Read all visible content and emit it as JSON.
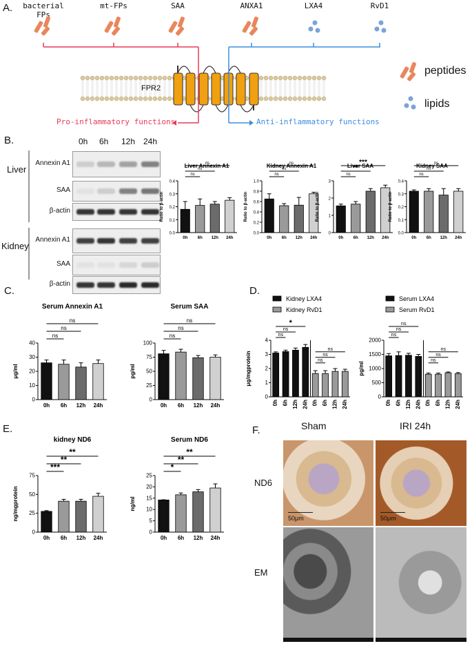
{
  "panel_labels": {
    "a": "A.",
    "b": "B.",
    "c": "C.",
    "d": "D.",
    "e": "E.",
    "f": "F."
  },
  "panel_a": {
    "ligands": [
      "bacterial FPs",
      "mt-FPs",
      "SAA",
      "ANXA1",
      "LXA4",
      "RvD1"
    ],
    "receptor": "FPR2",
    "pro": "Pro-inflammatory functions",
    "anti": "Anti-inflammatory functions",
    "legend": {
      "peptides": "peptides",
      "lipids": "lipids"
    },
    "colors": {
      "pro": "#e8395a",
      "anti": "#3b8de0",
      "peptide": "#e8875c",
      "lipid": "#7aa3d8",
      "helix": "#f0a010"
    }
  },
  "panel_b": {
    "lanes": [
      "0h",
      "6h",
      "12h",
      "24h"
    ],
    "groups": [
      {
        "name": "Liver",
        "rows": [
          "Annexin A1",
          "SAA",
          "β-actin"
        ]
      },
      {
        "name": "Kidney",
        "rows": [
          "Annexin A1",
          "SAA",
          "β-actin"
        ]
      }
    ]
  },
  "chart_data": [
    {
      "type": "bar",
      "title": "Liver Annexin A1",
      "ylabel": "Ratio to β-actin",
      "categories": [
        "0h",
        "6h",
        "12h",
        "24h"
      ],
      "values": [
        0.18,
        0.21,
        0.22,
        0.25
      ],
      "errors": [
        0.06,
        0.05,
        0.02,
        0.02
      ],
      "ylim": [
        0,
        0.4
      ],
      "yticks": [
        "0.0",
        "0.1",
        "0.2",
        "0.3",
        "0.4"
      ],
      "sig": [
        "ns",
        "ns",
        "ns"
      ],
      "colors": [
        "#111111",
        "#9a9a9a",
        "#6b6b6b",
        "#d0d0d0"
      ]
    },
    {
      "type": "bar",
      "title": "Kidney Annexin A1",
      "ylabel": "Ratio to β-actin",
      "categories": [
        "0h",
        "6h",
        "12h",
        "24h"
      ],
      "values": [
        0.65,
        0.52,
        0.53,
        0.75
      ],
      "errors": [
        0.1,
        0.04,
        0.15,
        0.03
      ],
      "ylim": [
        0,
        1.0
      ],
      "yticks": [
        "0.0",
        "0.2",
        "0.4",
        "0.6",
        "0.8",
        "1.0"
      ],
      "sig": [
        "ns",
        "ns",
        "ns"
      ],
      "colors": [
        "#111111",
        "#9a9a9a",
        "#6b6b6b",
        "#d0d0d0"
      ]
    },
    {
      "type": "bar",
      "title": "Liver SAA",
      "ylabel": "Ratio to β-actin",
      "categories": [
        "0h",
        "6h",
        "12h",
        "24h"
      ],
      "values": [
        1.55,
        1.65,
        2.4,
        2.6
      ],
      "errors": [
        0.1,
        0.15,
        0.15,
        0.15
      ],
      "ylim": [
        0,
        3
      ],
      "yticks": [
        "0",
        "1",
        "2",
        "3"
      ],
      "sig": [
        "ns",
        "**",
        "***"
      ],
      "colors": [
        "#111111",
        "#9a9a9a",
        "#6b6b6b",
        "#d0d0d0"
      ]
    },
    {
      "type": "bar",
      "title": "Kidney SAA",
      "ylabel": "Ratio to β-actin",
      "categories": [
        "0h",
        "6h",
        "12h",
        "24h"
      ],
      "values": [
        0.32,
        0.32,
        0.29,
        0.32
      ],
      "errors": [
        0.01,
        0.02,
        0.05,
        0.02
      ],
      "ylim": [
        0,
        0.4
      ],
      "yticks": [
        "0.0",
        "0.1",
        "0.2",
        "0.3",
        "0.4"
      ],
      "sig": [
        "ns",
        "ns",
        "ns"
      ],
      "colors": [
        "#111111",
        "#9a9a9a",
        "#6b6b6b",
        "#d0d0d0"
      ]
    },
    {
      "type": "bar",
      "title": "Serum Annexin A1",
      "ylabel": "μg/ml",
      "categories": [
        "0h",
        "6h",
        "12h",
        "24h"
      ],
      "values": [
        26,
        25,
        23,
        25.5
      ],
      "errors": [
        2,
        3,
        3,
        2.5
      ],
      "ylim": [
        0,
        40
      ],
      "yticks": [
        "0",
        "10",
        "20",
        "30",
        "40"
      ],
      "sig": [
        "ns",
        "ns",
        "ns"
      ],
      "colors": [
        "#111111",
        "#9a9a9a",
        "#6b6b6b",
        "#d0d0d0"
      ]
    },
    {
      "type": "bar",
      "title": "Serum SAA",
      "ylabel": "pg/ml",
      "categories": [
        "0h",
        "6h",
        "12h",
        "24h"
      ],
      "values": [
        81,
        84,
        74,
        75
      ],
      "errors": [
        6,
        5,
        4,
        4
      ],
      "ylim": [
        0,
        100
      ],
      "yticks": [
        "0",
        "25",
        "50",
        "75",
        "100"
      ],
      "sig": [
        "ns",
        "ns",
        "ns"
      ],
      "colors": [
        "#111111",
        "#9a9a9a",
        "#6b6b6b",
        "#d0d0d0"
      ]
    },
    {
      "type": "bar",
      "title": "",
      "ylabel": "μg/mgprotein",
      "categories": [
        "0h",
        "6h",
        "12h",
        "24h"
      ],
      "series": [
        {
          "name": "Kidney LXA4",
          "values": [
            3.1,
            3.2,
            3.3,
            3.5
          ],
          "errors": [
            0.08,
            0.1,
            0.15,
            0.2
          ]
        },
        {
          "name": "Kidney RvD1",
          "values": [
            1.65,
            1.65,
            1.8,
            1.8
          ],
          "errors": [
            0.2,
            0.2,
            0.2,
            0.15
          ]
        }
      ],
      "ylim": [
        0,
        4
      ],
      "yticks": [
        "0",
        "1",
        "2",
        "3",
        "4"
      ],
      "sig": [
        "ns",
        "ns",
        "*",
        "ns",
        "ns",
        "ns"
      ],
      "colors": [
        "#111111",
        "#9a9a9a"
      ]
    },
    {
      "type": "bar",
      "title": "",
      "ylabel": "pg/ml",
      "categories": [
        "0h",
        "6h",
        "12h",
        "24h"
      ],
      "series": [
        {
          "name": "Serum LXA4",
          "values": [
            1450,
            1460,
            1470,
            1430
          ],
          "errors": [
            80,
            130,
            70,
            70
          ]
        },
        {
          "name": "Serum RvD1",
          "values": [
            800,
            800,
            850,
            820
          ],
          "errors": [
            40,
            40,
            30,
            40
          ]
        }
      ],
      "ylim": [
        0,
        2000
      ],
      "yticks": [
        "0",
        "500",
        "1000",
        "1500",
        "2000"
      ],
      "sig": [
        "ns",
        "ns",
        "ns",
        "ns",
        "ns",
        "ns"
      ],
      "colors": [
        "#111111",
        "#9a9a9a"
      ]
    },
    {
      "type": "bar",
      "title": "kidney ND6",
      "ylabel": "ng/mgprotein",
      "categories": [
        "0h",
        "6h",
        "12h",
        "24h"
      ],
      "values": [
        27.5,
        41,
        41,
        47.5
      ],
      "errors": [
        1,
        2.5,
        2.5,
        4
      ],
      "ylim": [
        0,
        75
      ],
      "yticks": [
        "0",
        "25",
        "50",
        "75"
      ],
      "sig": [
        "***",
        "**",
        "**"
      ],
      "colors": [
        "#111111",
        "#9a9a9a",
        "#6b6b6b",
        "#d0d0d0"
      ]
    },
    {
      "type": "bar",
      "title": "Serum ND6",
      "ylabel": "ng/ml",
      "categories": [
        "0h",
        "6h",
        "12h",
        "24h"
      ],
      "values": [
        14.2,
        16.5,
        17.8,
        19.5
      ],
      "errors": [
        0.1,
        0.8,
        1,
        1.8
      ],
      "ylim": [
        0,
        25
      ],
      "yticks": [
        "0",
        "5",
        "10",
        "15",
        "20",
        "25"
      ],
      "sig": [
        "*",
        "**",
        "**"
      ],
      "colors": [
        "#111111",
        "#9a9a9a",
        "#6b6b6b",
        "#d0d0d0"
      ]
    }
  ],
  "panel_f": {
    "cols": [
      "Sham",
      "IRI 24h"
    ],
    "rows": [
      "ND6",
      "EM"
    ],
    "scalebar": "50μm"
  }
}
